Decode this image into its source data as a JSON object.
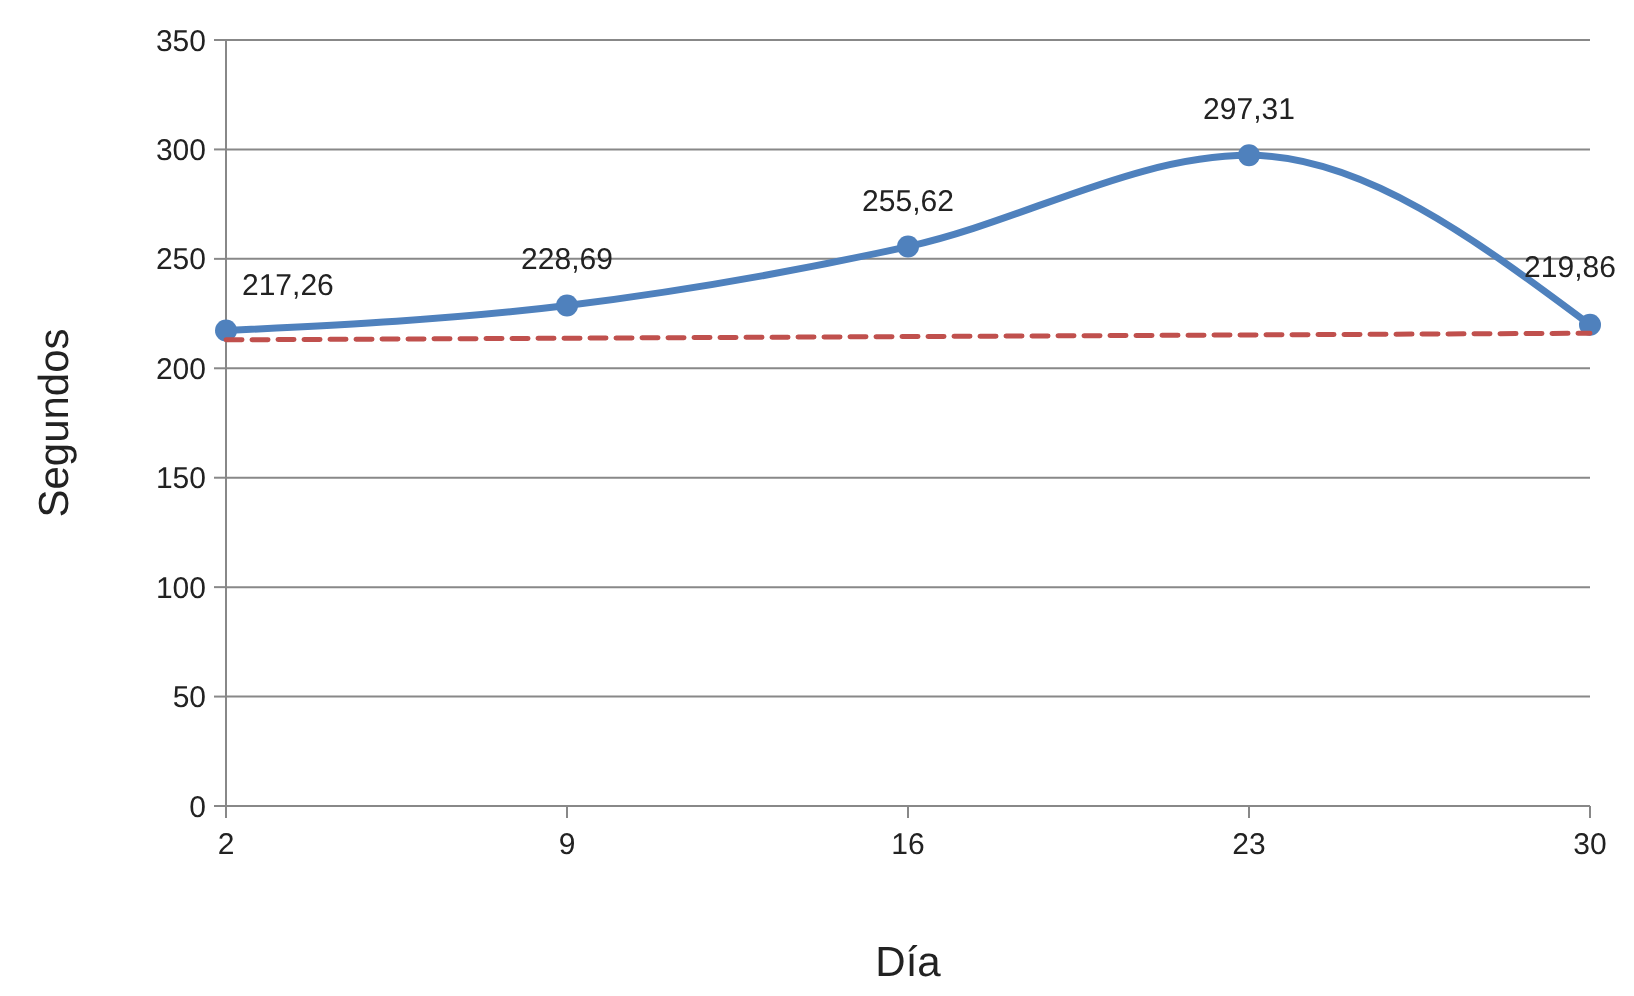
{
  "chart_data": {
    "type": "line",
    "xlabel": "Día",
    "ylabel": "Segundos",
    "x": [
      2,
      9,
      16,
      23,
      30
    ],
    "xlim": [
      2,
      30
    ],
    "xticks": [
      2,
      9,
      16,
      23,
      30
    ],
    "ylim": [
      0,
      350
    ],
    "yticks": [
      0,
      50,
      100,
      150,
      200,
      250,
      300,
      350
    ],
    "grid": "y",
    "series": [
      {
        "color": "#4f81bd",
        "values": [
          217.26,
          228.69,
          255.62,
          297.31,
          219.86
        ],
        "value_labels": [
          "217,26",
          "228,69",
          "255,62",
          "297,31",
          "219,86"
        ],
        "marker": "circle",
        "line_style": "solid"
      },
      {
        "type": "line",
        "color": "#c0504d",
        "x": [
          2,
          30
        ],
        "values": [
          213,
          216
        ],
        "marker": "none",
        "line_style": "dashed"
      }
    ]
  }
}
